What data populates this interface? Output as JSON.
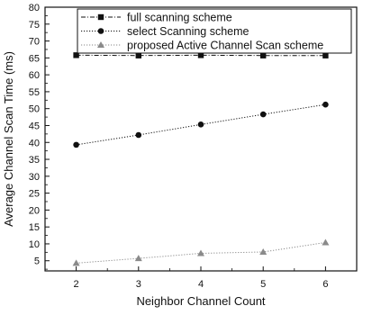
{
  "chart_data": {
    "type": "line",
    "xlabel": "Neighbor Channel Count",
    "ylabel": "Average Channel Scan Time (ms)",
    "x": [
      2,
      3,
      4,
      5,
      6
    ],
    "xlim": [
      1.5,
      6.5
    ],
    "ylim": [
      2,
      80
    ],
    "yticks": [
      5,
      10,
      15,
      20,
      25,
      30,
      35,
      40,
      45,
      50,
      55,
      60,
      65,
      70,
      75,
      80
    ],
    "xticks": [
      2,
      3,
      4,
      5,
      6
    ],
    "legend_position": "top",
    "series": [
      {
        "name": "full scanning scheme",
        "marker": "square",
        "color": "#111111",
        "line_style": "dash-dot",
        "values": [
          65.8,
          65.7,
          65.8,
          65.7,
          65.7
        ]
      },
      {
        "name": "select Scanning scheme",
        "marker": "circle",
        "color": "#111111",
        "line_style": "dotted",
        "values": [
          39.3,
          42.2,
          45.3,
          48.3,
          51.2
        ]
      },
      {
        "name": "proposed Active Channel Scan scheme",
        "marker": "triangle",
        "color": "#8a8a8a",
        "line_style": "dotted",
        "values": [
          4.3,
          5.7,
          7.2,
          7.6,
          10.4
        ]
      }
    ]
  }
}
